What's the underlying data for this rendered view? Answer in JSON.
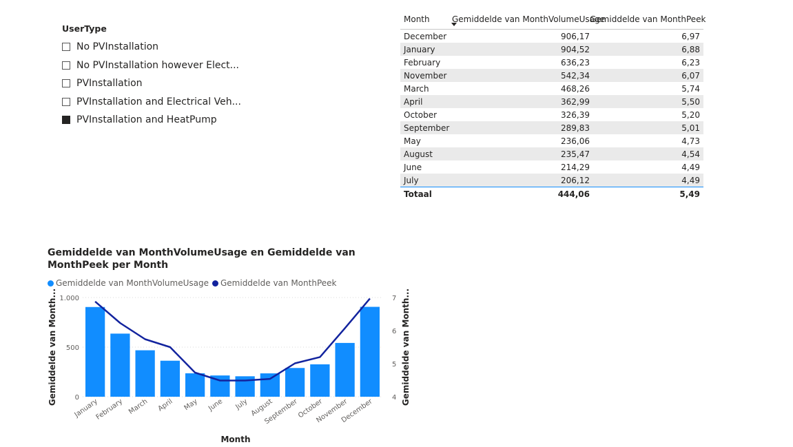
{
  "slicer": {
    "title": "UserType",
    "items": [
      {
        "label": "No PVInstallation",
        "checked": false
      },
      {
        "label": "No PVInstallation however Elect...",
        "checked": false
      },
      {
        "label": "PVInstallation",
        "checked": false
      },
      {
        "label": "PVInstallation and Electrical Veh...",
        "checked": false
      },
      {
        "label": "PVInstallation and HeatPump",
        "checked": true
      }
    ]
  },
  "table": {
    "headers": [
      "Month",
      "Gemiddelde van MonthVolumeUsage",
      "Gemiddelde van MonthPeek"
    ],
    "rows": [
      [
        "December",
        "906,17",
        "6,97"
      ],
      [
        "January",
        "904,52",
        "6,88"
      ],
      [
        "February",
        "636,23",
        "6,23"
      ],
      [
        "November",
        "542,34",
        "6,07"
      ],
      [
        "March",
        "468,26",
        "5,74"
      ],
      [
        "April",
        "362,99",
        "5,50"
      ],
      [
        "October",
        "326,39",
        "5,20"
      ],
      [
        "September",
        "289,83",
        "5,01"
      ],
      [
        "May",
        "236,06",
        "4,73"
      ],
      [
        "August",
        "235,47",
        "4,54"
      ],
      [
        "June",
        "214,29",
        "4,49"
      ],
      [
        "July",
        "206,12",
        "4,49"
      ]
    ],
    "total": [
      "Totaal",
      "444,06",
      "5,49"
    ]
  },
  "colors": {
    "bar": "#118dff",
    "line": "#12239e",
    "grid": "#d9d9d9"
  },
  "chart_data": {
    "type": "bar",
    "title": "Gemiddelde van MonthVolumeUsage en Gemiddelde van MonthPeek per Month",
    "xlabel": "Month",
    "ylabel": "Gemiddelde van Month...",
    "y2label": "Gemiddelde van Month...",
    "legend_position": "top-left",
    "categories": [
      "January",
      "February",
      "March",
      "April",
      "May",
      "June",
      "July",
      "August",
      "September",
      "October",
      "November",
      "December"
    ],
    "series": [
      {
        "name": "Gemiddelde van MonthVolumeUsage",
        "type": "bar",
        "axis": "left",
        "values": [
          904.52,
          636.23,
          468.26,
          362.99,
          236.06,
          214.29,
          206.12,
          235.47,
          289.83,
          326.39,
          542.34,
          906.17
        ]
      },
      {
        "name": "Gemiddelde van MonthPeek",
        "type": "line",
        "axis": "right",
        "values": [
          6.88,
          6.23,
          5.74,
          5.5,
          4.73,
          4.49,
          4.49,
          4.54,
          5.01,
          5.2,
          6.07,
          6.97
        ]
      }
    ],
    "ylim": [
      0,
      1000
    ],
    "y2lim": [
      4,
      7
    ],
    "y_ticks": [
      0,
      500,
      1000
    ],
    "y_tick_labels": [
      "0",
      "500",
      "1.000"
    ],
    "y2_ticks": [
      4,
      5,
      6,
      7
    ],
    "y2_tick_labels": [
      "4",
      "5",
      "6",
      "7"
    ],
    "grid": true
  }
}
